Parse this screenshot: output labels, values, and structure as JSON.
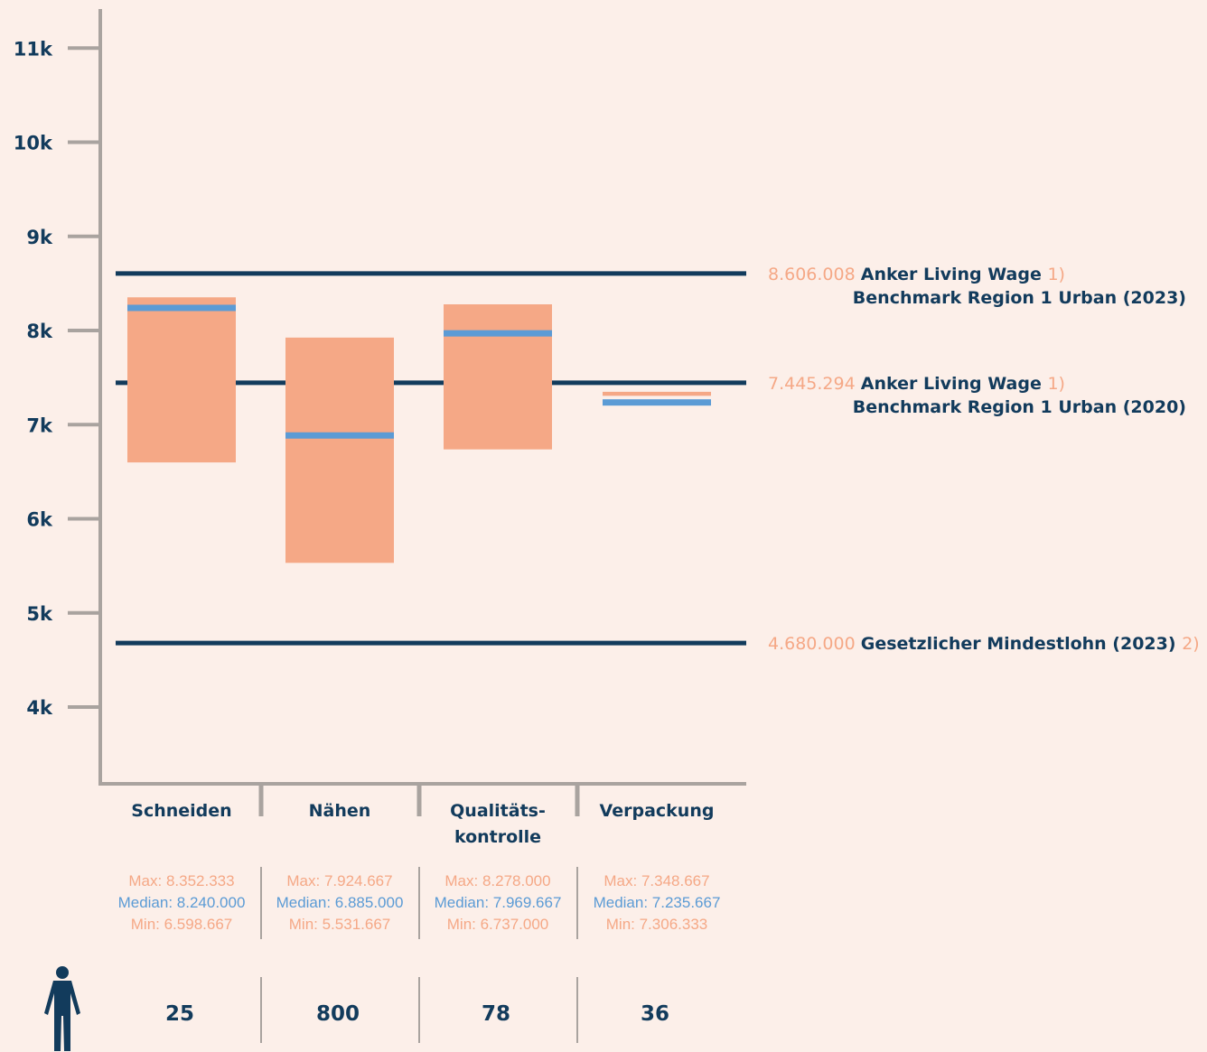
{
  "colors": {
    "background": "#fcefe9",
    "axis": "#a9a39f",
    "range_box": "#f5a886",
    "median": "#5b9bd5",
    "reference_line": "#123b5c",
    "text_dark": "#123b5c",
    "text_range": "#f5a886",
    "text_median": "#5b9bd5"
  },
  "icons": {
    "headcount": "person-icon"
  },
  "chart_data": {
    "type": "box",
    "ylim": [
      3200,
      11400
    ],
    "yticks": [
      4000,
      5000,
      6000,
      7000,
      8000,
      9000,
      10000,
      11000
    ],
    "ytick_labels": [
      "4k",
      "5k",
      "6k",
      "7k",
      "8k",
      "9k",
      "10k",
      "11k"
    ],
    "grid": false,
    "categories": [
      {
        "label_lines": [
          "Schneiden"
        ],
        "max": 8352.333,
        "median": 8240.0,
        "min": 6598.667,
        "max_text": "Max: 8.352.333",
        "median_text": "Median: 8.240.000",
        "min_text": "Min: 6.598.667",
        "count": "25"
      },
      {
        "label_lines": [
          "Nähen"
        ],
        "max": 7924.667,
        "median": 6885.0,
        "min": 5531.667,
        "max_text": "Max: 7.924.667",
        "median_text": "Median: 6.885.000",
        "min_text": "Min: 5.531.667",
        "count": "800"
      },
      {
        "label_lines": [
          "Qualitäts-",
          "kontrolle"
        ],
        "max": 8278.0,
        "median": 7969.667,
        "min": 6737.0,
        "max_text": "Max: 8.278.000",
        "median_text": "Median: 7.969.667",
        "min_text": "Min: 6.737.000",
        "count": "78"
      },
      {
        "label_lines": [
          "Verpackung"
        ],
        "max": 7348.667,
        "median": 7235.667,
        "min": 7306.333,
        "max_text": "Max: 7.348.667",
        "median_text": "Median: 7.235.667",
        "min_text": "Min: 7.306.333",
        "count": "36"
      }
    ],
    "reference_lines": [
      {
        "value": 8606.008,
        "value_text": "8.606.008",
        "label_lines": [
          "Anker Living Wage",
          "Benchmark Region 1 Urban (2023)"
        ],
        "note": "1)"
      },
      {
        "value": 7445.294,
        "value_text": "7.445.294",
        "label_lines": [
          "Anker Living Wage",
          "Benchmark Region 1 Urban (2020)"
        ],
        "note": "1)"
      },
      {
        "value": 4680.0,
        "value_text": "4.680.000",
        "label_lines": [
          "Gesetzlicher Mindestlohn (2023)"
        ],
        "note": "2)"
      }
    ]
  }
}
